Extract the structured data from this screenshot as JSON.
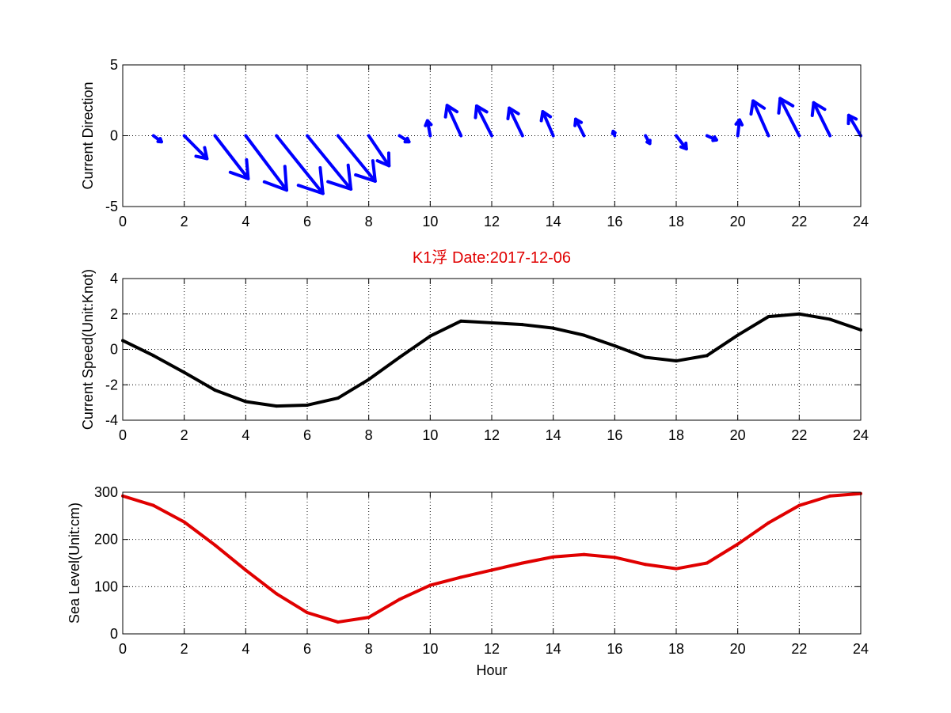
{
  "chart_data": [
    {
      "type": "quiver",
      "ylabel": "Current Direction",
      "xlim": [
        0,
        24
      ],
      "ylim": [
        -5,
        5
      ],
      "xticks": [
        0,
        2,
        4,
        6,
        8,
        10,
        12,
        14,
        16,
        18,
        20,
        22,
        24
      ],
      "yticks": [
        -5,
        0,
        5
      ],
      "grid": true,
      "color": "#0000ff",
      "x": [
        1,
        2,
        3,
        4,
        5,
        6,
        7,
        8,
        9,
        10,
        11,
        12,
        13,
        14,
        15,
        16,
        17,
        18,
        19,
        20,
        21,
        22,
        23,
        24
      ],
      "u": [
        0.26,
        0.74,
        1.08,
        1.33,
        1.51,
        1.42,
        1.21,
        0.66,
        0.31,
        -0.09,
        -0.45,
        -0.49,
        -0.43,
        -0.34,
        -0.27,
        -0.05,
        0.14,
        0.33,
        0.31,
        0.06,
        -0.5,
        -0.62,
        -0.53,
        -0.39
      ],
      "v": [
        -0.43,
        -1.62,
        -3.03,
        -3.84,
        -4.08,
        -3.77,
        -3.21,
        -2.12,
        -0.43,
        1.06,
        2.14,
        2.1,
        1.95,
        1.7,
        1.17,
        0.31,
        -0.55,
        -0.93,
        -0.3,
        1.12,
        2.46,
        2.63,
        2.33,
        1.44
      ]
    },
    {
      "type": "line",
      "title": "K1浮    Date:2017-12-06",
      "ylabel": "Current Speed(Unit:Knot)",
      "xlim": [
        0,
        24
      ],
      "ylim": [
        -4,
        4
      ],
      "xticks": [
        0,
        2,
        4,
        6,
        8,
        10,
        12,
        14,
        16,
        18,
        20,
        22,
        24
      ],
      "yticks": [
        -4,
        -2,
        0,
        2,
        4
      ],
      "grid": true,
      "color": "#000000",
      "x": [
        0,
        1,
        2,
        3,
        4,
        5,
        6,
        7,
        8,
        9,
        10,
        11,
        12,
        13,
        14,
        15,
        16,
        17,
        18,
        19,
        20,
        21,
        22,
        23,
        24
      ],
      "y": [
        0.5,
        -0.35,
        -1.3,
        -2.3,
        -2.95,
        -3.2,
        -3.15,
        -2.75,
        -1.7,
        -0.45,
        0.75,
        1.6,
        1.5,
        1.4,
        1.2,
        0.8,
        0.2,
        -0.45,
        -0.65,
        -0.35,
        0.8,
        1.85,
        2.0,
        1.7,
        1.1
      ]
    },
    {
      "type": "line",
      "xlabel": "Hour",
      "ylabel": "Sea Level(Unit:cm)",
      "xlim": [
        0,
        24
      ],
      "ylim": [
        0,
        300
      ],
      "xticks": [
        0,
        2,
        4,
        6,
        8,
        10,
        12,
        14,
        16,
        18,
        20,
        22,
        24
      ],
      "yticks": [
        0,
        100,
        200,
        300
      ],
      "grid": true,
      "color": "#e00000",
      "x": [
        0,
        1,
        2,
        3,
        4,
        5,
        6,
        7,
        8,
        9,
        10,
        11,
        12,
        13,
        14,
        15,
        16,
        17,
        18,
        19,
        20,
        21,
        22,
        23,
        24
      ],
      "y": [
        292,
        272,
        237,
        188,
        135,
        85,
        45,
        25,
        35,
        73,
        103,
        120,
        135,
        150,
        163,
        168,
        162,
        147,
        138,
        150,
        190,
        235,
        272,
        292,
        297
      ]
    }
  ]
}
